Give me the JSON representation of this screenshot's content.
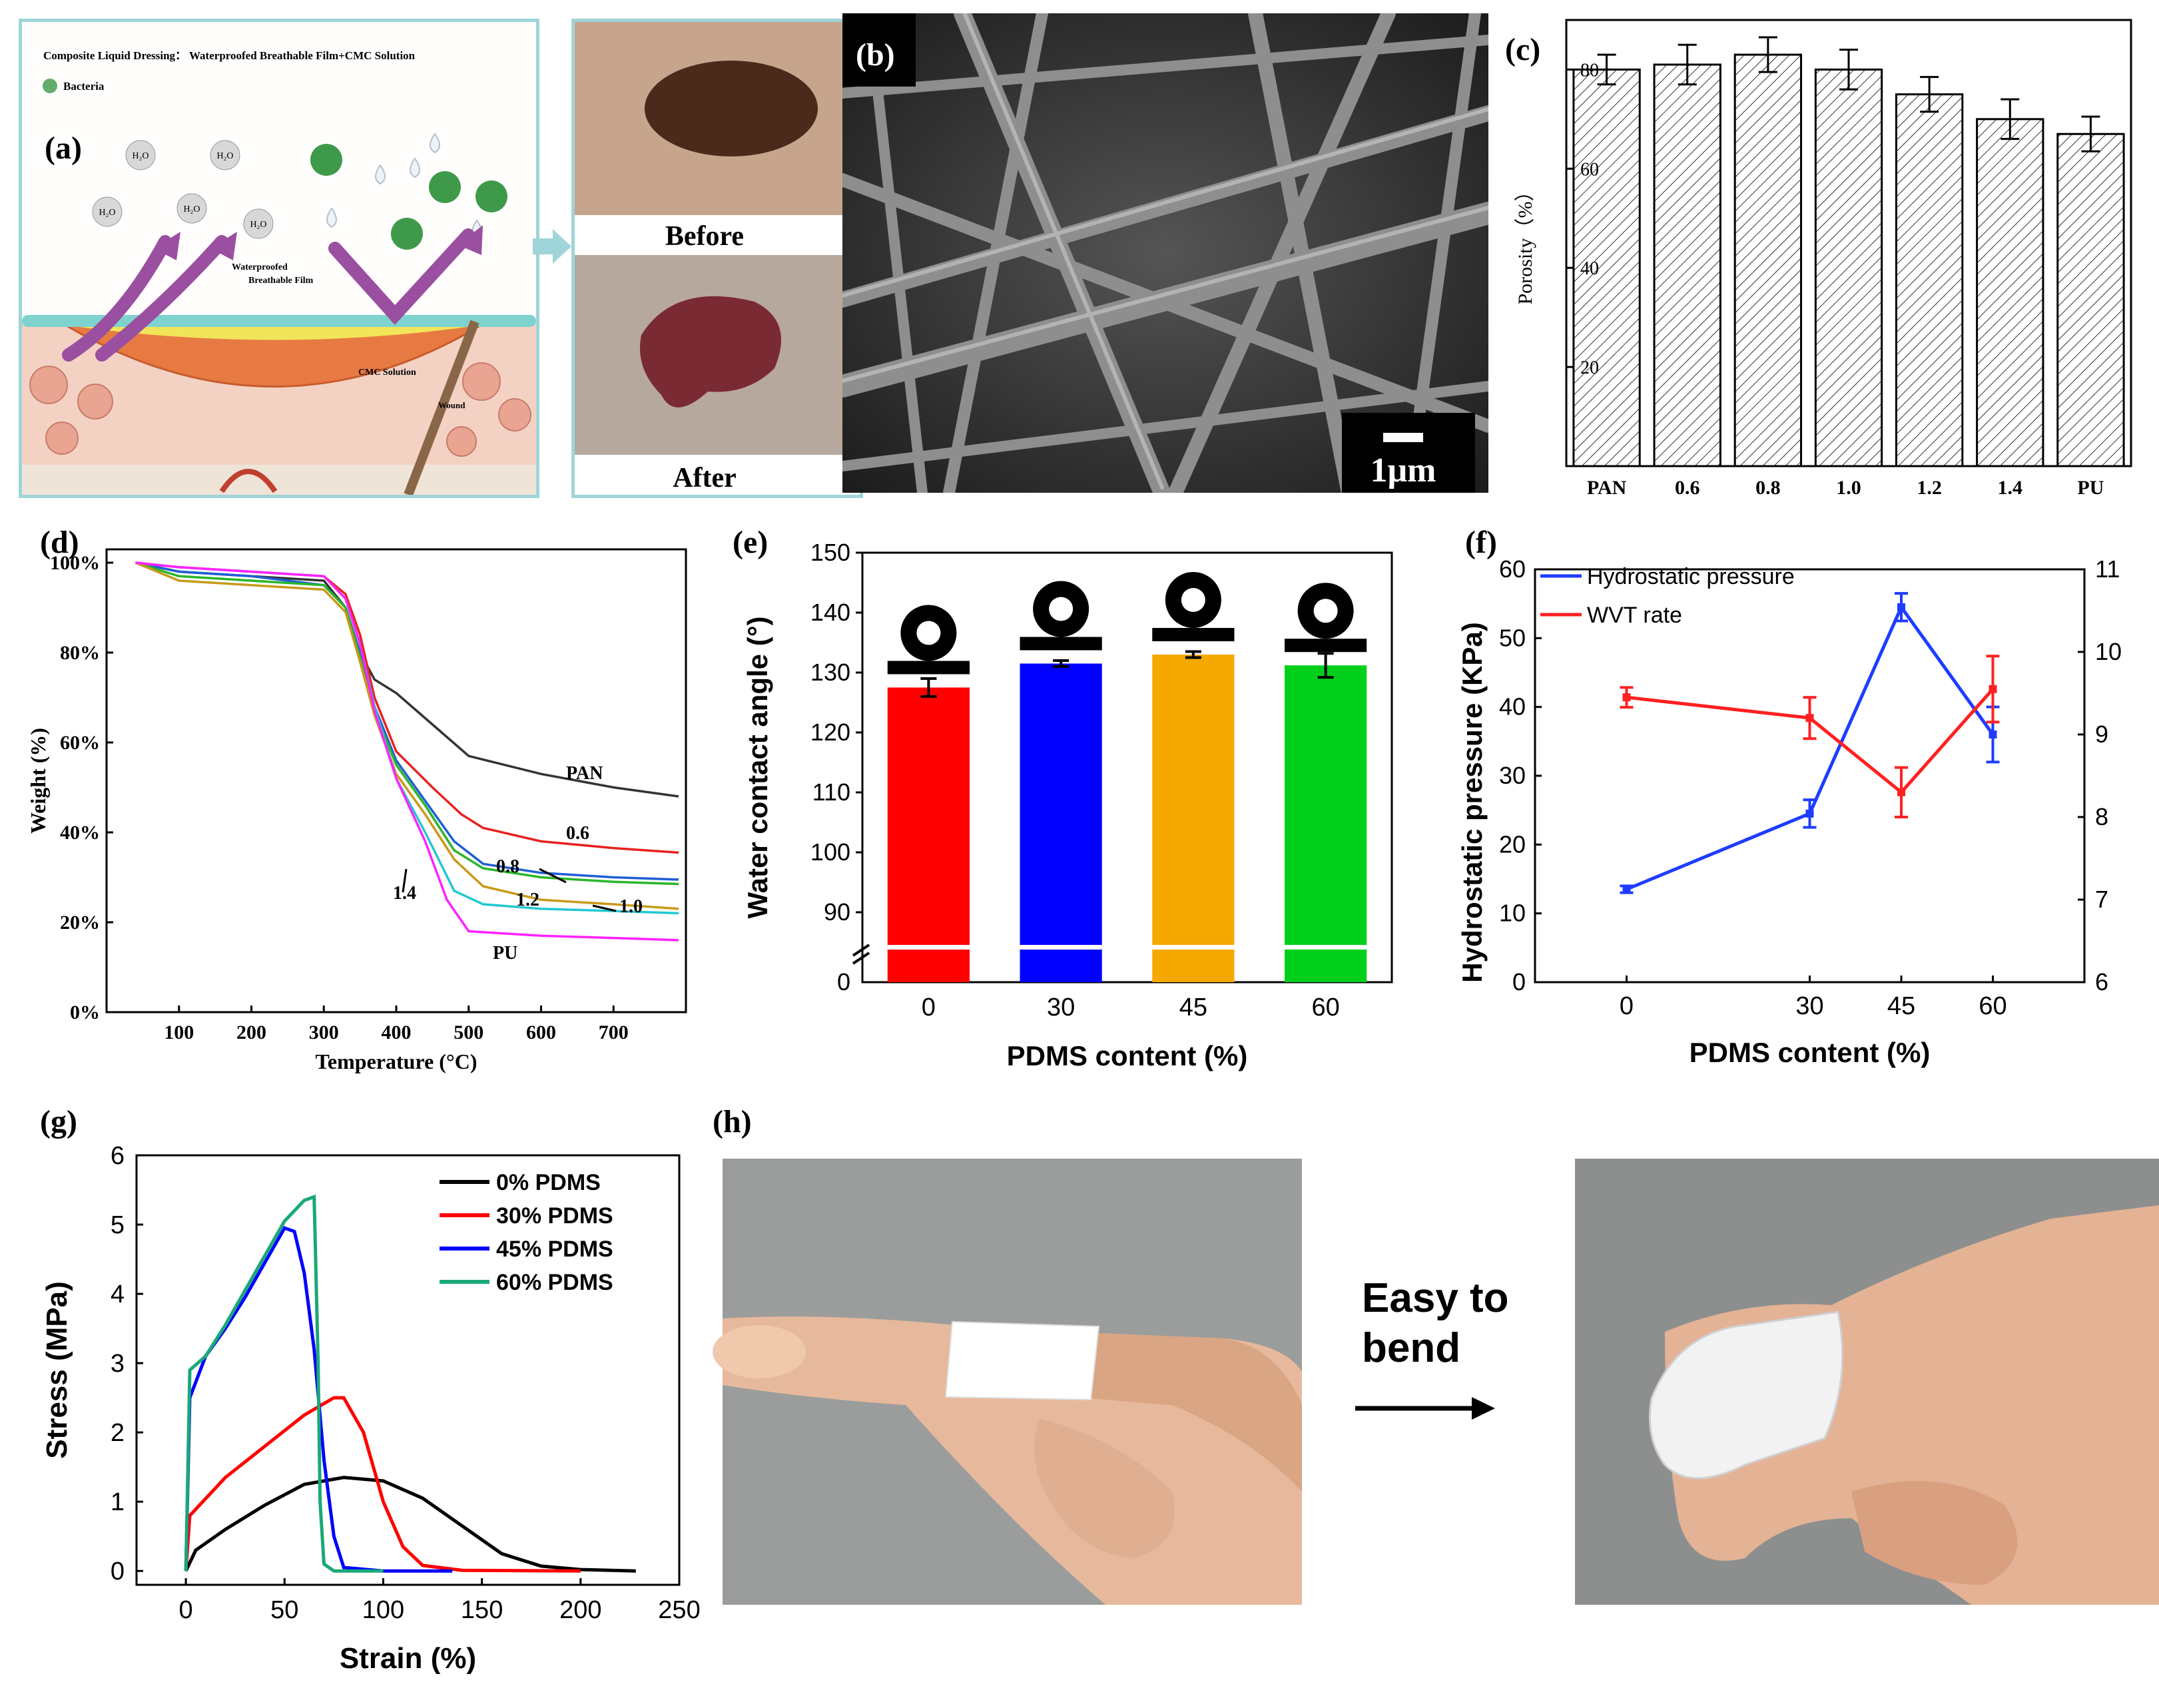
{
  "panel_labels": {
    "a": "(a)",
    "b": "(b)",
    "c": "(c)",
    "d": "(d)",
    "e": "(e)",
    "f": "(f)",
    "g": "(g)",
    "h": "(h)"
  },
  "panel_a": {
    "title": "Composite Liquid Dressing： Waterproofed Breathable Film+CMC Solution",
    "legend": "Bacteria",
    "water": "H₂O",
    "film_label_1": "Waterproofed",
    "film_label_2": "Breathable Film",
    "cmc_label": "CMC Solution",
    "wound_label": "Wound",
    "before": "Before",
    "after": "After"
  },
  "panel_b": {
    "scale_bar": "1μm"
  },
  "colors": {
    "red": "#ff0000",
    "blue": "#0000ff",
    "orange": "#f5a800",
    "green": "#00d01c",
    "teal": "#1aa879",
    "black": "#000000"
  },
  "chart_data": [
    {
      "id": "c",
      "type": "bar",
      "title": "",
      "xlabel": "",
      "ylabel": "Porosity（%）",
      "categories": [
        "PAN",
        "0.6",
        "0.8",
        "1.0",
        "1.2",
        "1.4",
        "PU"
      ],
      "values": [
        80,
        81,
        83,
        80,
        75,
        70,
        67
      ],
      "errors": [
        3,
        4,
        3.5,
        4,
        3.5,
        4,
        3.5
      ],
      "ylim": [
        0,
        90
      ],
      "yticks": [
        20,
        40,
        60,
        80
      ],
      "hatch": true
    },
    {
      "id": "d",
      "type": "line",
      "xlabel": "Temperature (°C)",
      "ylabel": "Weight (%)",
      "xlim": [
        0,
        800
      ],
      "ylim": [
        0,
        100
      ],
      "xticks": [
        100,
        200,
        300,
        400,
        500,
        600,
        700
      ],
      "yticks": [
        0,
        20,
        40,
        60,
        80,
        100
      ],
      "ytick_labels": [
        "0%",
        "20%",
        "40%",
        "60%",
        "80%",
        "100%"
      ],
      "series": [
        {
          "name": "PAN",
          "color": "#333333",
          "x": [
            40,
            100,
            200,
            300,
            330,
            350,
            370,
            400,
            450,
            500,
            600,
            700,
            790
          ],
          "y": [
            100,
            98,
            97,
            96,
            90,
            80,
            74,
            71,
            64,
            57,
            53,
            50,
            48
          ]
        },
        {
          "name": "0.6",
          "color": "#e8211f",
          "x": [
            40,
            100,
            200,
            300,
            330,
            350,
            370,
            400,
            450,
            490,
            520,
            600,
            700,
            790
          ],
          "y": [
            100,
            99,
            98,
            97,
            93,
            84,
            70,
            58,
            50,
            44,
            41,
            38,
            36.5,
            35.5
          ]
        },
        {
          "name": "0.8",
          "color": "#1f5fd6",
          "x": [
            40,
            100,
            200,
            300,
            330,
            350,
            370,
            400,
            440,
            480,
            520,
            600,
            700,
            790
          ],
          "y": [
            100,
            98,
            97,
            95,
            90,
            80,
            68,
            56,
            47,
            38,
            33,
            31,
            30,
            29.5
          ]
        },
        {
          "name": "1.0",
          "color": "#2ab52a",
          "x": [
            40,
            100,
            200,
            300,
            330,
            350,
            370,
            400,
            440,
            480,
            520,
            600,
            700,
            790
          ],
          "y": [
            100,
            97,
            96,
            95,
            90,
            79,
            67,
            55,
            46,
            36,
            32,
            30,
            29,
            28.5
          ]
        },
        {
          "name": "1.2",
          "color": "#c89a1a",
          "x": [
            40,
            100,
            200,
            300,
            330,
            350,
            370,
            400,
            440,
            480,
            520,
            600,
            700,
            790
          ],
          "y": [
            100,
            96,
            95,
            94,
            89,
            78,
            66,
            53,
            44,
            34,
            28,
            25,
            24,
            23
          ]
        },
        {
          "name": "1.4",
          "color": "#22c8d0",
          "x": [
            40,
            100,
            200,
            300,
            330,
            350,
            370,
            400,
            440,
            480,
            520,
            600,
            700,
            790
          ],
          "y": [
            100,
            99,
            98,
            97,
            92,
            82,
            68,
            52,
            40,
            27,
            24,
            23,
            22.5,
            22
          ]
        },
        {
          "name": "PU",
          "color": "#ff22ff",
          "x": [
            40,
            100,
            200,
            300,
            330,
            350,
            370,
            400,
            440,
            470,
            500,
            600,
            700,
            790
          ],
          "y": [
            100,
            99,
            98,
            97,
            92,
            82,
            67,
            52,
            38,
            25,
            18,
            17,
            16.5,
            16
          ]
        }
      ],
      "annotations": [
        "PAN",
        "0.6",
        "0.8",
        "1.2",
        "1.0",
        "1.4",
        "PU"
      ]
    },
    {
      "id": "e",
      "type": "bar",
      "xlabel": "PDMS content (%)",
      "ylabel": "Water contact angle (°)",
      "categories": [
        "0",
        "30",
        "45",
        "60"
      ],
      "values": [
        127.5,
        131.5,
        133,
        131.2
      ],
      "errors": [
        1.5,
        0.5,
        0.5,
        2
      ],
      "ylim": [
        85,
        150
      ],
      "yticks": [
        90,
        100,
        110,
        120,
        130,
        140,
        150
      ],
      "axis_break": true,
      "zero_tick": "0"
    },
    {
      "id": "f",
      "type": "line",
      "xlabel": "PDMS content (%)",
      "ylabel": "Hydrostatic pressure (KPa)",
      "y2label": "",
      "x": [
        0,
        30,
        45,
        60
      ],
      "ylim": [
        0,
        60
      ],
      "y2lim": [
        6,
        11
      ],
      "yticks": [
        0,
        10,
        20,
        30,
        40,
        50,
        60
      ],
      "y2ticks": [
        6,
        7,
        8,
        9,
        10,
        11
      ],
      "series": [
        {
          "name": "Hydrostatic pressure",
          "axis": "left",
          "color": "#1e3cff",
          "values": [
            13.5,
            24.5,
            54.5,
            36
          ],
          "errors": [
            0.5,
            2,
            2,
            4
          ]
        },
        {
          "name": "WVT rate",
          "axis": "right",
          "color": "#ff2020",
          "values": [
            9.45,
            9.2,
            8.3,
            9.55
          ],
          "errors": [
            0.12,
            0.25,
            0.3,
            0.4
          ]
        }
      ]
    },
    {
      "id": "g",
      "type": "line",
      "xlabel": "Strain (%)",
      "ylabel": "Stress (MPa)",
      "xlim": [
        -25,
        250
      ],
      "ylim": [
        -0.2,
        6
      ],
      "xticks": [
        0,
        50,
        100,
        150,
        200,
        250
      ],
      "yticks": [
        0,
        1,
        2,
        3,
        4,
        5,
        6
      ],
      "series": [
        {
          "name": "0% PDMS",
          "color": "#000000",
          "x": [
            0,
            5,
            20,
            40,
            60,
            80,
            100,
            120,
            140,
            160,
            180,
            200,
            228
          ],
          "y": [
            0,
            0.3,
            0.6,
            0.95,
            1.25,
            1.35,
            1.3,
            1.05,
            0.65,
            0.25,
            0.07,
            0.02,
            0
          ]
        },
        {
          "name": "30% PDMS",
          "color": "#ff0000",
          "x": [
            0,
            2,
            20,
            40,
            60,
            75,
            80,
            90,
            100,
            110,
            120,
            140,
            200
          ],
          "y": [
            0,
            0.8,
            1.35,
            1.8,
            2.25,
            2.5,
            2.5,
            2.0,
            1.0,
            0.35,
            0.08,
            0.01,
            0
          ]
        },
        {
          "name": "45% PDMS",
          "color": "#0000ff",
          "x": [
            0,
            2,
            10,
            20,
            30,
            40,
            50,
            55,
            60,
            65,
            70,
            75,
            80,
            100,
            135
          ],
          "y": [
            0,
            2.5,
            3.1,
            3.5,
            3.95,
            4.45,
            4.95,
            4.9,
            4.3,
            3.2,
            1.6,
            0.5,
            0.05,
            0,
            0
          ]
        },
        {
          "name": "60% PDMS",
          "color": "#1aa879",
          "x": [
            0,
            2,
            10,
            20,
            30,
            40,
            50,
            60,
            65,
            67,
            68,
            70,
            75,
            100
          ],
          "y": [
            0,
            2.9,
            3.1,
            3.55,
            4.05,
            4.55,
            5.05,
            5.35,
            5.4,
            3.0,
            1.0,
            0.1,
            0,
            0
          ]
        }
      ]
    }
  ],
  "panel_h": {
    "arrow_text_1": "Easy to",
    "arrow_text_2": "bend"
  }
}
